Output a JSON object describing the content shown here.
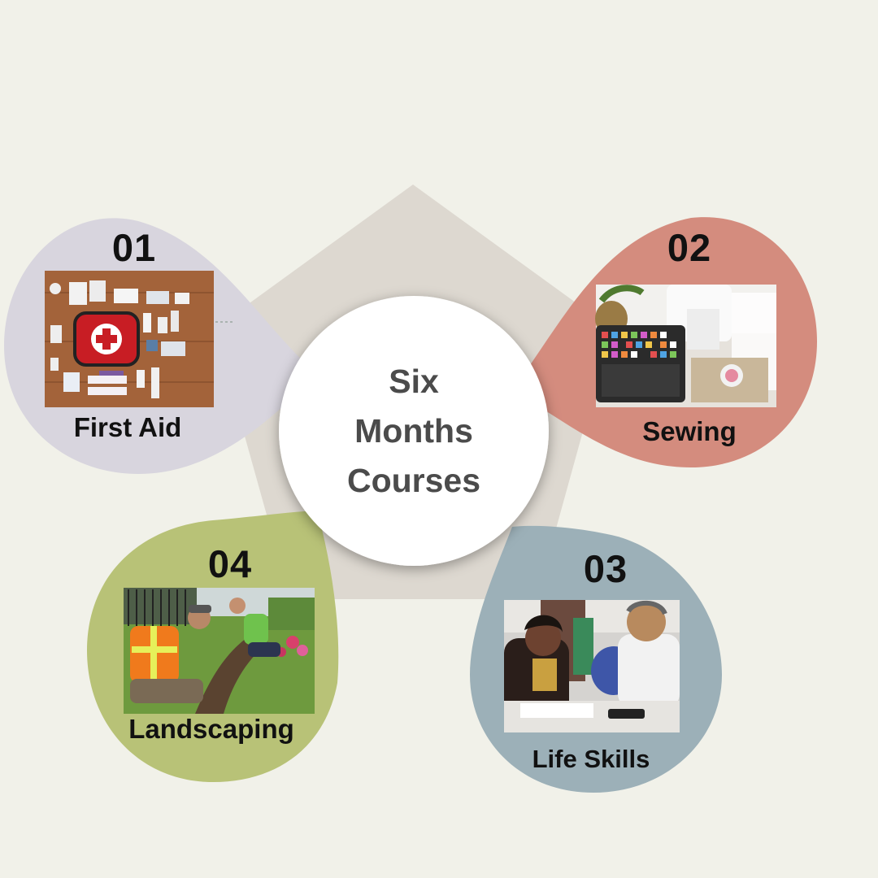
{
  "center": {
    "lines": [
      "Six",
      "Months",
      "Courses"
    ]
  },
  "items": [
    {
      "number": "01",
      "label": "First Aid",
      "color": "#d8d5de",
      "icon": "first-aid-kit-photo"
    },
    {
      "number": "02",
      "label": "Sewing",
      "color": "#d48c7e",
      "icon": "sewing-supplies-photo"
    },
    {
      "number": "03",
      "label": "Life Skills",
      "color": "#9cb0b8",
      "icon": "people-studying-photo"
    },
    {
      "number": "04",
      "label": "Landscaping",
      "color": "#b8c277",
      "icon": "landscaping-workers-photo"
    }
  ],
  "colors": {
    "background": "#f1f1e9",
    "pentagon": "#ddd8d0",
    "center_circle": "#ffffff"
  }
}
